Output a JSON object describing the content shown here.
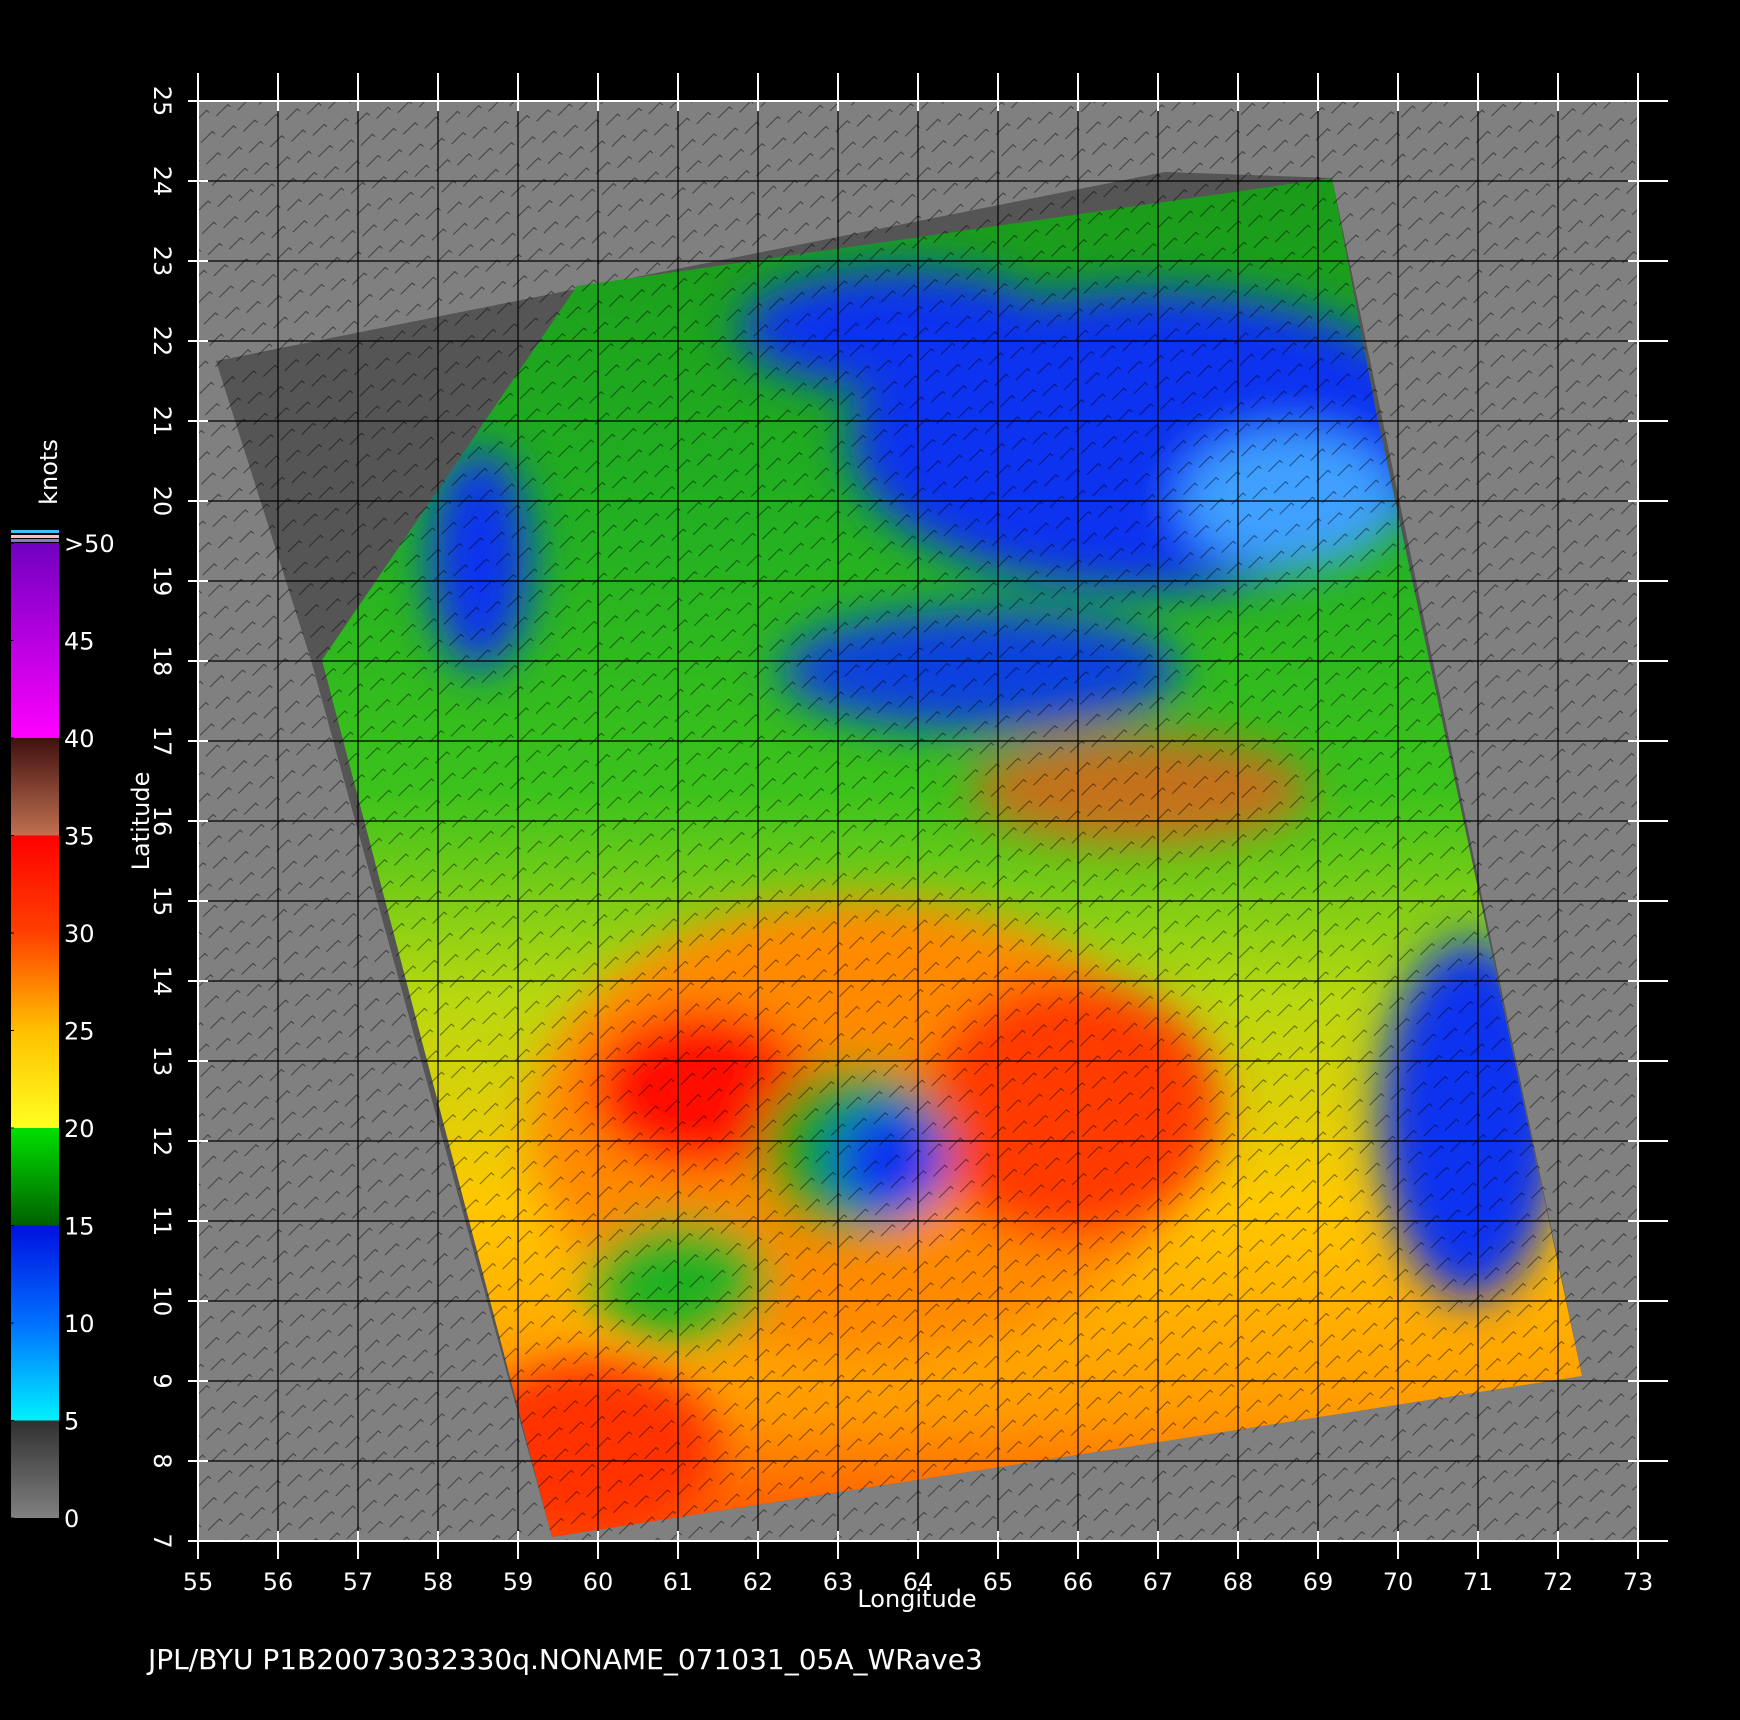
{
  "chart_data": {
    "type": "map",
    "footer": "JPL/BYU  P1B20073032330q.NONAME_071031_05A_WRave3",
    "x_label": "Longitude",
    "y_label": "Latitude",
    "xlim": [
      55,
      73
    ],
    "xticks": [
      55,
      56,
      57,
      58,
      59,
      60,
      61,
      62,
      63,
      64,
      65,
      66,
      67,
      68,
      69,
      70,
      71,
      72,
      73
    ],
    "ylim": [
      7,
      25
    ],
    "yticks": [
      7,
      8,
      9,
      10,
      11,
      12,
      13,
      14,
      15,
      16,
      17,
      18,
      19,
      20,
      21,
      22,
      23,
      24,
      25
    ],
    "grid": true,
    "colorbar": {
      "label": "knots",
      "lim": [
        0,
        50
      ],
      "ticks": [
        0,
        5,
        10,
        15,
        20,
        25,
        30,
        35,
        40,
        45,
        {
          "value": 50,
          "label": ">50"
        }
      ]
    }
  }
}
